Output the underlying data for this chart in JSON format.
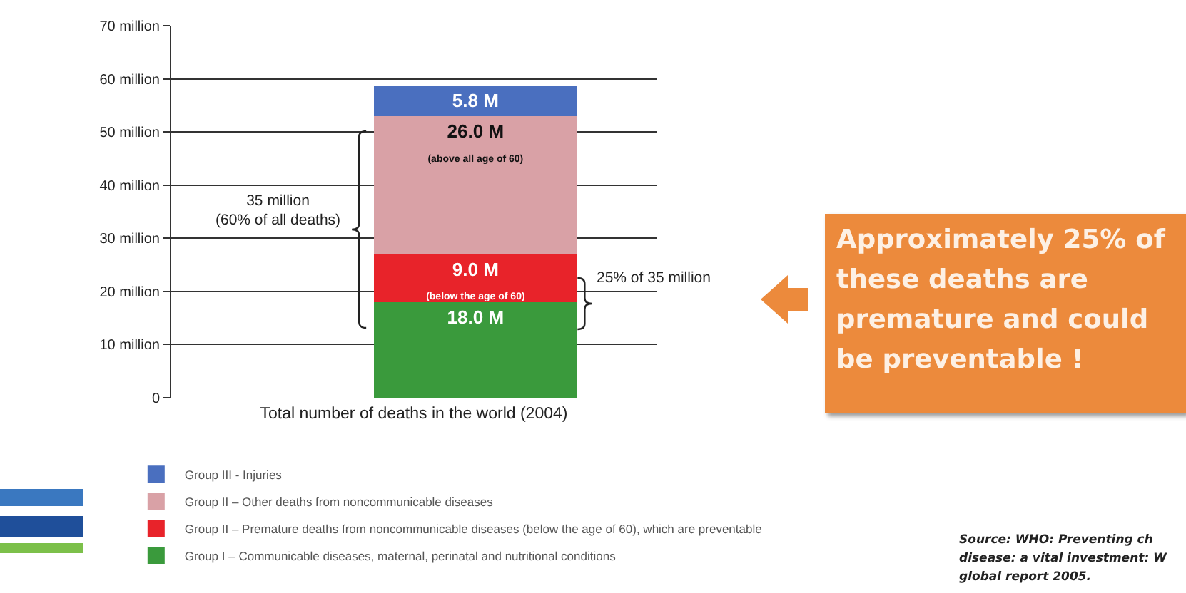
{
  "chart_data": {
    "type": "bar",
    "stacked": true,
    "categories": [
      null
    ],
    "series": [
      {
        "name": "Group I – Communicable diseases, maternal, perinatal and nutritional conditions",
        "color": "#3a9a3c",
        "values": [
          18.0
        ],
        "value_labels": [
          "18.0 M"
        ]
      },
      {
        "name": "Group II – Premature deaths from noncommunicable diseases (below the age of 60), which are preventable",
        "color": "#e8232a",
        "values": [
          9.0
        ],
        "value_labels": [
          "9.0 M\n(below the age of 60)"
        ]
      },
      {
        "name": "Group II – Other deaths from noncommunicable diseases",
        "color": "#d9a1a6",
        "values": [
          26.0
        ],
        "value_labels": [
          "26.0 M\n(above all age of 60)"
        ]
      },
      {
        "name": "Group III - Injuries",
        "color": "#4a6fbf",
        "values": [
          5.8
        ],
        "value_labels": [
          "5.8 M"
        ]
      }
    ],
    "xlabel": "Total number of deaths in the world (2004)",
    "ylim": [
      0,
      70
    ],
    "yticks": [
      0,
      {
        "value": 10,
        "label": "10 million"
      },
      {
        "value": 20,
        "label": "20 million"
      },
      {
        "value": 30,
        "label": "30 million"
      },
      {
        "value": 40,
        "label": "40 million"
      },
      {
        "value": 50,
        "label": "50 million"
      },
      {
        "value": 60,
        "label": "60 million"
      },
      {
        "value": 70,
        "label": "70 million"
      }
    ],
    "grid": "y",
    "legend": "bottom left",
    "annotations": [
      "35 million\n(60% of all deaths)",
      "25% of 35 million",
      "Approximately 25% of these deaths are premature and could be preventable !",
      "Source: WHO: Preventing ch",
      "disease: a vital investment: W",
      "global report  2005."
    ]
  }
}
